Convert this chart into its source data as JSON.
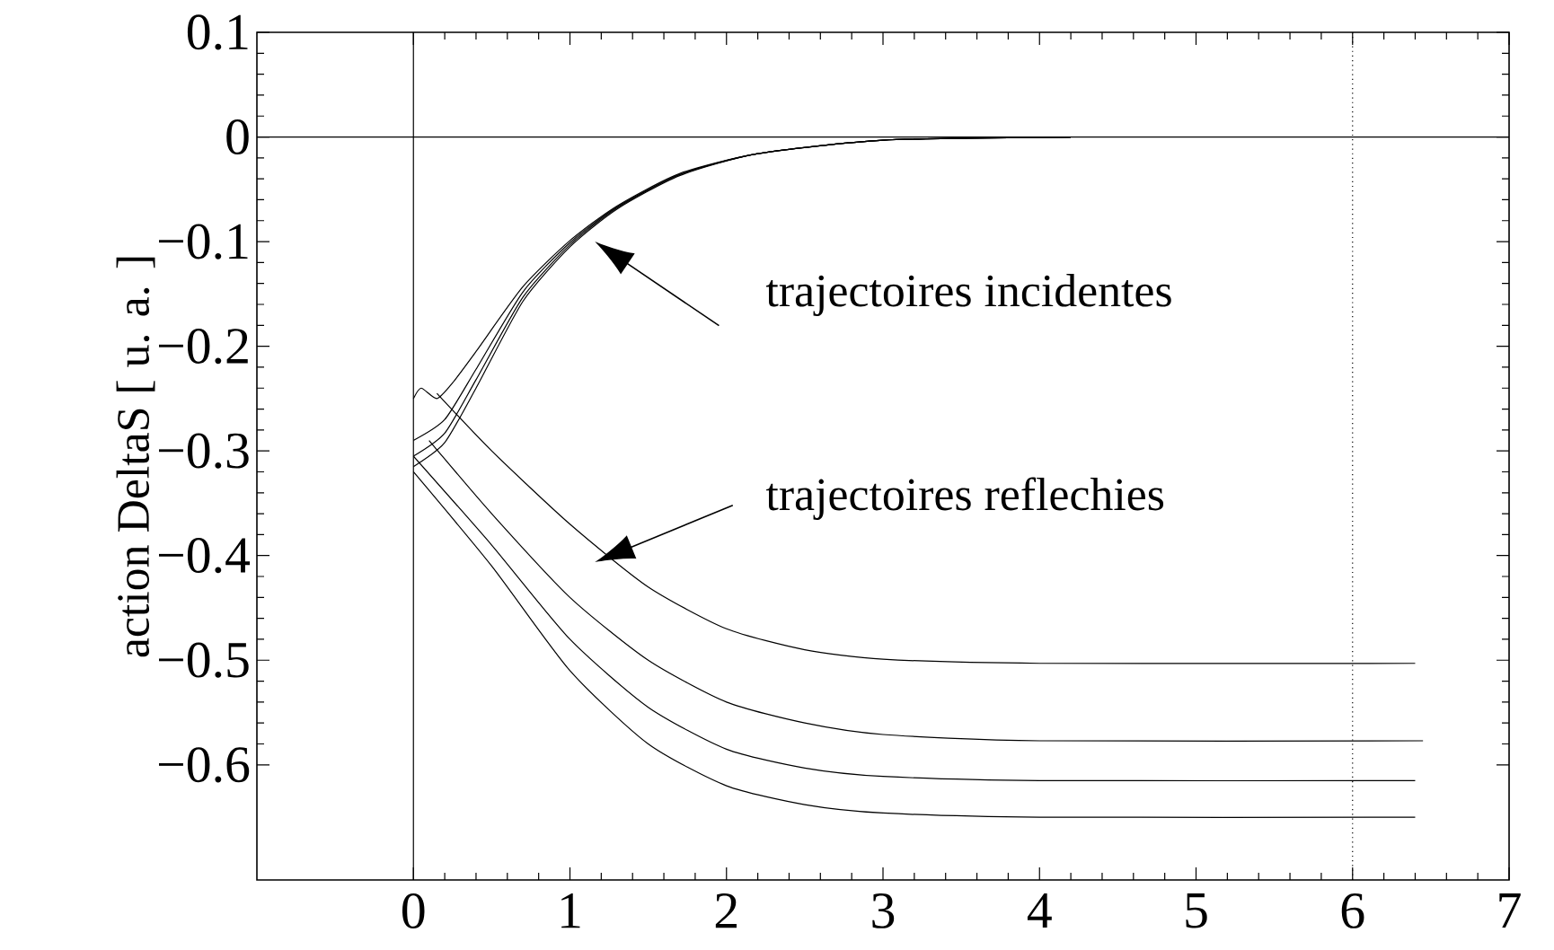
{
  "chart_data": {
    "type": "line",
    "ylabel": "action DeltaS  [ u. a. ]",
    "xlim": [
      -1,
      7
    ],
    "ylim": [
      -0.71,
      0.1
    ],
    "xticks": [
      0,
      1,
      2,
      3,
      4,
      5,
      6,
      7
    ],
    "yticks": [
      0.1,
      0,
      {
        "value": -0.1,
        "label": "−0.1"
      },
      {
        "value": -0.2,
        "label": "−0.2"
      },
      {
        "value": -0.3,
        "label": "−0.3"
      },
      {
        "value": -0.4,
        "label": "−0.4"
      },
      {
        "value": -0.5,
        "label": "−0.5"
      },
      {
        "value": -0.6,
        "label": "−0.6"
      }
    ],
    "series": [
      {
        "color": "#000000",
        "x": [
          0,
          0.05,
          0.15,
          0.25,
          0.4,
          0.7,
          1.0,
          1.3,
          1.7,
          2.2,
          3.0,
          4.2
        ],
        "values": [
          -0.25,
          -0.24,
          -0.25,
          -0.235,
          -0.205,
          -0.143,
          -0.099,
          -0.066,
          -0.035,
          -0.016,
          -0.003,
          0
        ]
      },
      {
        "color": "#000000",
        "x": [
          0,
          0.2,
          0.4,
          0.7,
          1.0,
          1.3,
          1.7,
          2.2,
          3.0,
          4.2
        ],
        "values": [
          -0.29,
          -0.27,
          -0.222,
          -0.148,
          -0.101,
          -0.067,
          -0.036,
          -0.016,
          -0.003,
          0
        ]
      },
      {
        "color": "#000000",
        "x": [
          0,
          0.2,
          0.4,
          0.7,
          1.0,
          1.3,
          1.7,
          2.2,
          3.0,
          4.2
        ],
        "values": [
          -0.305,
          -0.283,
          -0.232,
          -0.153,
          -0.103,
          -0.068,
          -0.036,
          -0.016,
          -0.003,
          0
        ]
      },
      {
        "color": "#000000",
        "x": [
          0,
          0.2,
          0.4,
          0.7,
          1.0,
          1.3,
          1.7,
          2.2,
          3.0,
          4.2
        ],
        "values": [
          -0.315,
          -0.292,
          -0.24,
          -0.157,
          -0.105,
          -0.069,
          -0.037,
          -0.016,
          -0.003,
          0
        ]
      },
      {
        "color": "#000000",
        "x": [
          0.15,
          0.5,
          1.0,
          1.5,
          2.0,
          2.5,
          3.0,
          4.0,
          6.4
        ],
        "values": [
          -0.245,
          -0.3,
          -0.37,
          -0.43,
          -0.47,
          -0.49,
          -0.499,
          -0.503,
          -0.503
        ]
      },
      {
        "color": "#000000",
        "x": [
          0.1,
          0.5,
          1.0,
          1.5,
          2.0,
          2.5,
          3.0,
          4.0,
          6.45
        ],
        "values": [
          -0.29,
          -0.36,
          -0.44,
          -0.5,
          -0.54,
          -0.56,
          -0.571,
          -0.577,
          -0.577
        ]
      },
      {
        "color": "#000000",
        "x": [
          0,
          0.5,
          1.0,
          1.5,
          2.0,
          2.5,
          3.0,
          4.0,
          6.4
        ],
        "values": [
          -0.305,
          -0.39,
          -0.48,
          -0.545,
          -0.585,
          -0.603,
          -0.611,
          -0.615,
          -0.615
        ]
      },
      {
        "color": "#000000",
        "x": [
          0,
          0.5,
          1.0,
          1.5,
          2.0,
          2.5,
          3.0,
          4.0,
          6.4
        ],
        "values": [
          -0.32,
          -0.41,
          -0.51,
          -0.58,
          -0.62,
          -0.638,
          -0.646,
          -0.65,
          -0.65
        ]
      }
    ],
    "ref_lines": [
      {
        "axis": "x",
        "value": 0,
        "line_style": "solid"
      },
      {
        "axis": "y",
        "value": 0,
        "line_style": "solid"
      },
      {
        "axis": "x",
        "value": 6,
        "line_style": "dotted"
      }
    ],
    "annotations": [
      "trajectoires incidentes",
      "trajectoires reflechies"
    ],
    "marker": "none",
    "line_style": "solid",
    "grid": false
  }
}
